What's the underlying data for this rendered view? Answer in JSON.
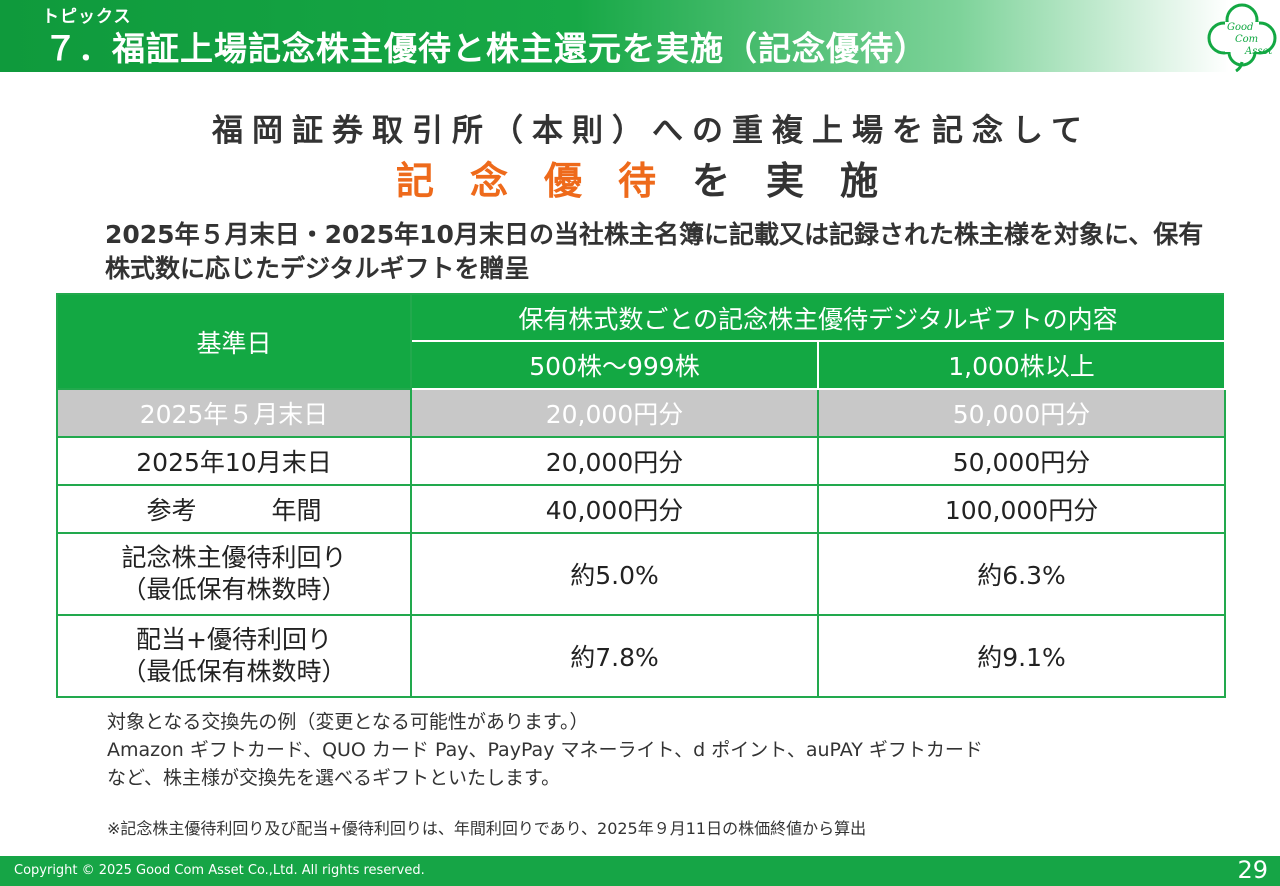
{
  "header": {
    "topic_label": "トピックス",
    "title": "７．福証上場記念株主優待と株主還元を実施（記念優待）",
    "logo_lines": [
      "Good",
      "Com",
      "Asset"
    ],
    "logo_icon": "clover-icon",
    "brand_color": "#13a843"
  },
  "lead": {
    "line1": "福岡証券取引所（本則）への重複上場を記念して",
    "line2_highlight": "記念優待",
    "line2_rest": "を実施",
    "highlight_color": "#ee6a1b"
  },
  "description": "2025年５月末日・2025年10月末日の当社株主名簿に記載又は記録された株主様を対象に、保有株式数に応じたデジタルギフトを贈呈",
  "table": {
    "header_base": "基準日",
    "header_group": "保有株式数ごとの記念株主優待デジタルギフトの内容",
    "col1": "500株～999株",
    "col2": "1,000株以上",
    "rows": [
      {
        "label": "2025年５月末日",
        "v1": "20,000円分",
        "v2": "50,000円分"
      },
      {
        "label": "2025年10月末日",
        "v1": "20,000円分",
        "v2": "50,000円分"
      },
      {
        "label": "参考　　　年間",
        "v1": "40,000円分",
        "v2": "100,000円分"
      },
      {
        "label_line1": "記念株主優待利回り",
        "label_line2": "（最低保有株数時）",
        "v1": "約5.0%",
        "v2": "約6.3%"
      },
      {
        "label_line1": "配当+優待利回り",
        "label_line2": "（最低保有株数時）",
        "v1": "約7.8%",
        "v2": "約9.1%"
      }
    ]
  },
  "notes": {
    "line1": "対象となる交換先の例（変更となる可能性があります。）",
    "line2": "Amazon ギフトカード、QUO カード Pay、PayPay マネーライト、d ポイント、auPAY ギフトカード",
    "line3": "など、株主様が交換先を選べるギフトといたします。"
  },
  "footnote": "※記念株主優待利回り及び配当+優待利回りは、年間利回りであり、2025年９月11日の株価終値から算出",
  "footer": {
    "copyright": "Copyright © 2025 Good Com Asset Co.,Ltd. All rights reserved.",
    "page_number": "29"
  }
}
